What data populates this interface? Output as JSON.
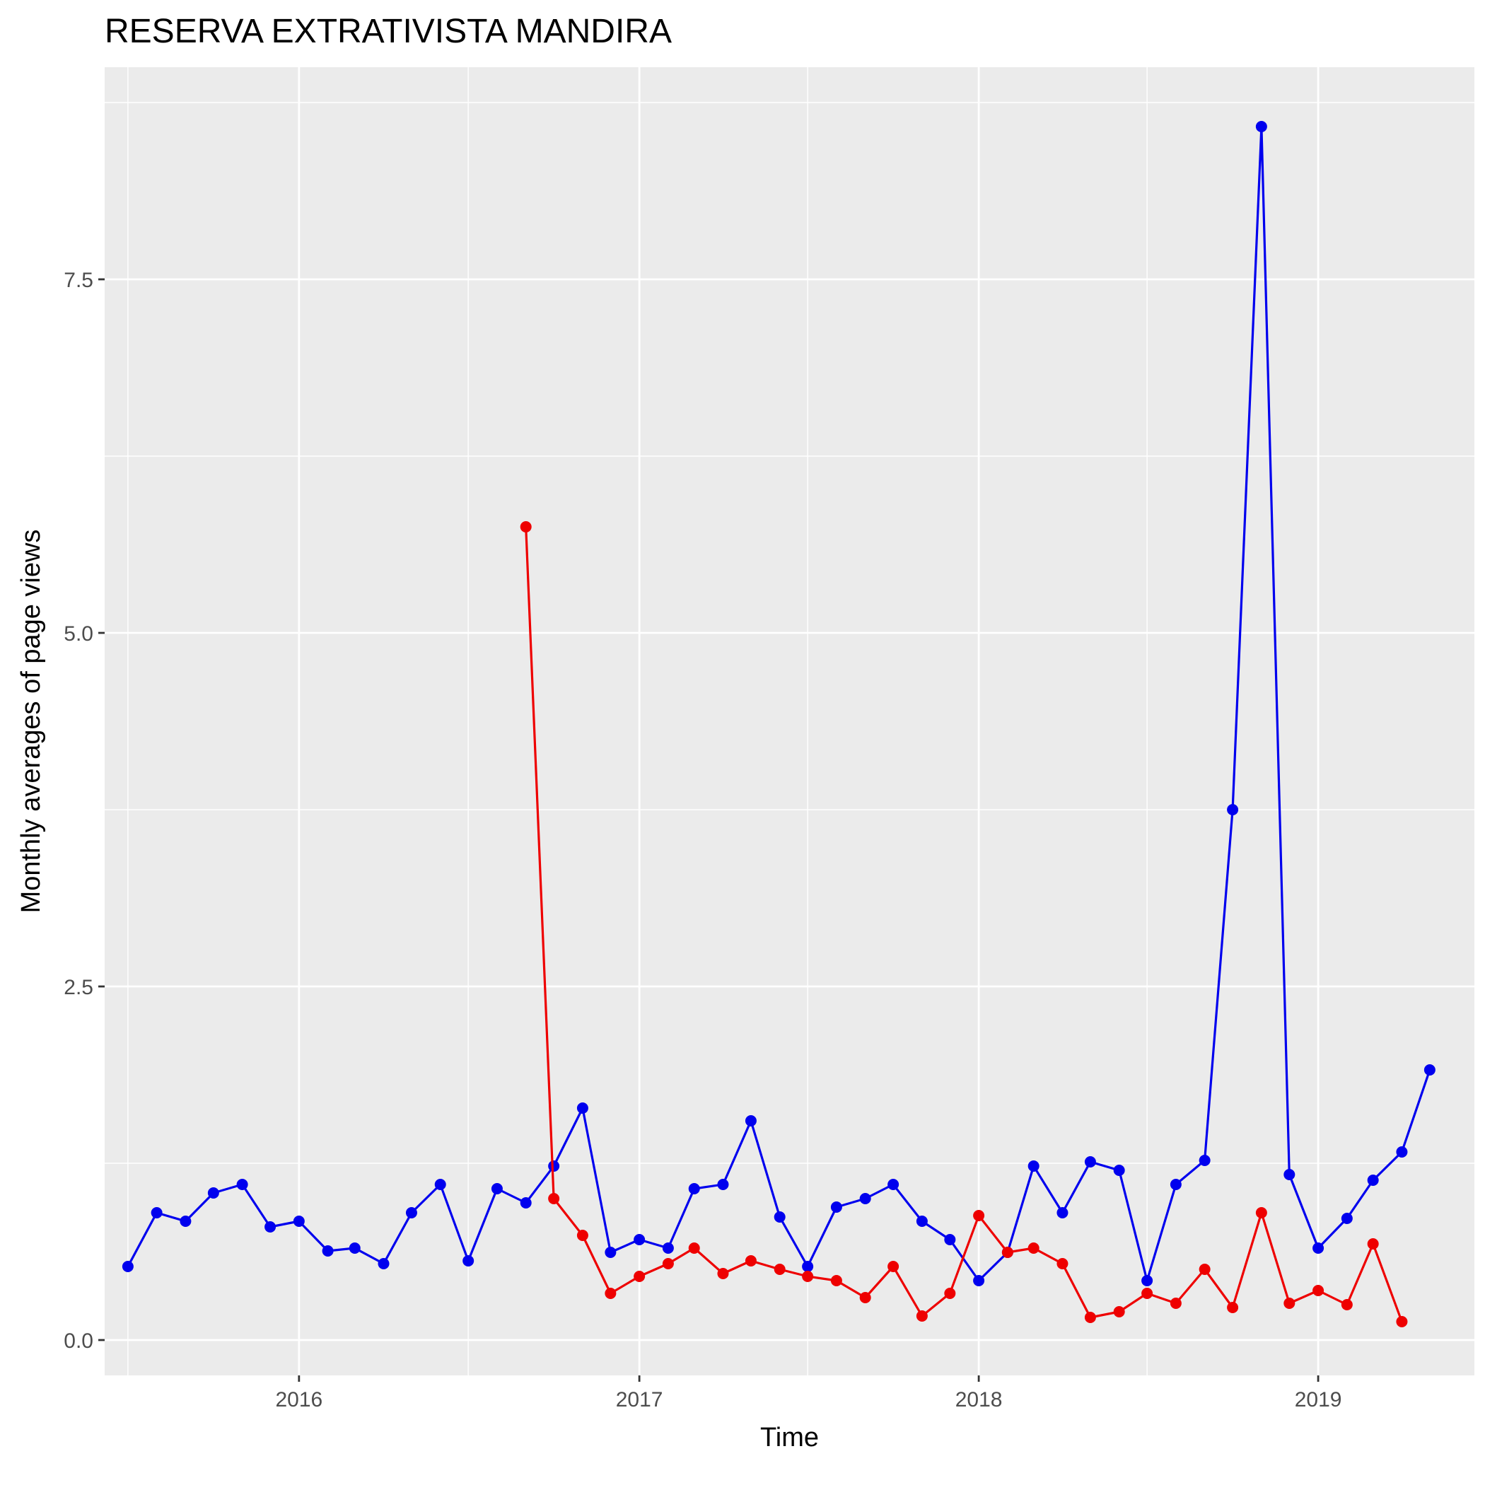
{
  "chart_data": {
    "type": "line",
    "title": "RESERVA EXTRATIVISTA MANDIRA",
    "xlabel": "Time",
    "ylabel": "Monthly averages of page views",
    "x_ticks": [
      "2016",
      "2017",
      "2018",
      "2019"
    ],
    "y_ticks": [
      "0.0",
      "2.5",
      "5.0",
      "7.5"
    ],
    "ylim": [
      -0.25,
      9.0
    ],
    "xlim": [
      "2015-06-06",
      "2019-06-18"
    ],
    "grid": true,
    "colors": {
      "panel": "#ebebeb",
      "grid": "#ffffff",
      "series_blue": "#0000ee",
      "series_red": "#ee0000"
    },
    "series": [
      {
        "color": "#0000ee",
        "points": [
          [
            "2015-07-01",
            0.52
          ],
          [
            "2015-08-01",
            0.9
          ],
          [
            "2015-09-01",
            0.84
          ],
          [
            "2015-10-01",
            1.04
          ],
          [
            "2015-11-01",
            1.1
          ],
          [
            "2015-12-01",
            0.8
          ],
          [
            "2016-01-01",
            0.84
          ],
          [
            "2016-02-01",
            0.63
          ],
          [
            "2016-03-01",
            0.65
          ],
          [
            "2016-04-01",
            0.54
          ],
          [
            "2016-05-01",
            0.9
          ],
          [
            "2016-06-01",
            1.1
          ],
          [
            "2016-07-01",
            0.56
          ],
          [
            "2016-08-01",
            1.07
          ],
          [
            "2016-09-01",
            0.97
          ],
          [
            "2016-10-01",
            1.23
          ],
          [
            "2016-11-01",
            1.64
          ],
          [
            "2016-12-01",
            0.62
          ],
          [
            "2017-01-01",
            0.71
          ],
          [
            "2017-02-01",
            0.65
          ],
          [
            "2017-03-01",
            1.07
          ],
          [
            "2017-04-01",
            1.1
          ],
          [
            "2017-05-01",
            1.55
          ],
          [
            "2017-06-01",
            0.87
          ],
          [
            "2017-07-01",
            0.52
          ],
          [
            "2017-08-01",
            0.94
          ],
          [
            "2017-09-01",
            1.0
          ],
          [
            "2017-10-01",
            1.1
          ],
          [
            "2017-11-01",
            0.84
          ],
          [
            "2017-12-01",
            0.71
          ],
          [
            "2018-01-01",
            0.42
          ],
          [
            "2018-02-01",
            0.62
          ],
          [
            "2018-03-01",
            1.23
          ],
          [
            "2018-04-01",
            0.9
          ],
          [
            "2018-05-01",
            1.26
          ],
          [
            "2018-06-01",
            1.2
          ],
          [
            "2018-07-01",
            0.42
          ],
          [
            "2018-08-01",
            1.1
          ],
          [
            "2018-09-01",
            1.27
          ],
          [
            "2018-10-01",
            3.75
          ],
          [
            "2018-11-01",
            8.58
          ],
          [
            "2018-12-01",
            1.17
          ],
          [
            "2019-01-01",
            0.65
          ],
          [
            "2019-02-01",
            0.86
          ],
          [
            "2019-03-01",
            1.13
          ],
          [
            "2019-04-01",
            1.33
          ],
          [
            "2019-05-01",
            1.91
          ]
        ]
      },
      {
        "color": "#ee0000",
        "points": [
          [
            "2016-09-01",
            5.75
          ],
          [
            "2016-10-01",
            1.0
          ],
          [
            "2016-11-01",
            0.74
          ],
          [
            "2016-12-01",
            0.33
          ],
          [
            "2017-01-01",
            0.45
          ],
          [
            "2017-02-01",
            0.54
          ],
          [
            "2017-03-01",
            0.65
          ],
          [
            "2017-04-01",
            0.47
          ],
          [
            "2017-05-01",
            0.56
          ],
          [
            "2017-06-01",
            0.5
          ],
          [
            "2017-07-01",
            0.45
          ],
          [
            "2017-08-01",
            0.42
          ],
          [
            "2017-09-01",
            0.3
          ],
          [
            "2017-10-01",
            0.52
          ],
          [
            "2017-11-01",
            0.17
          ],
          [
            "2017-12-01",
            0.33
          ],
          [
            "2018-01-01",
            0.88
          ],
          [
            "2018-02-01",
            0.62
          ],
          [
            "2018-03-01",
            0.65
          ],
          [
            "2018-04-01",
            0.54
          ],
          [
            "2018-05-01",
            0.16
          ],
          [
            "2018-06-01",
            0.2
          ],
          [
            "2018-07-01",
            0.33
          ],
          [
            "2018-08-01",
            0.26
          ],
          [
            "2018-09-01",
            0.5
          ],
          [
            "2018-10-01",
            0.23
          ],
          [
            "2018-11-01",
            0.9
          ],
          [
            "2018-12-01",
            0.26
          ],
          [
            "2019-01-01",
            0.35
          ],
          [
            "2019-02-01",
            0.25
          ],
          [
            "2019-03-01",
            0.68
          ],
          [
            "2019-04-01",
            0.13
          ]
        ]
      }
    ]
  }
}
